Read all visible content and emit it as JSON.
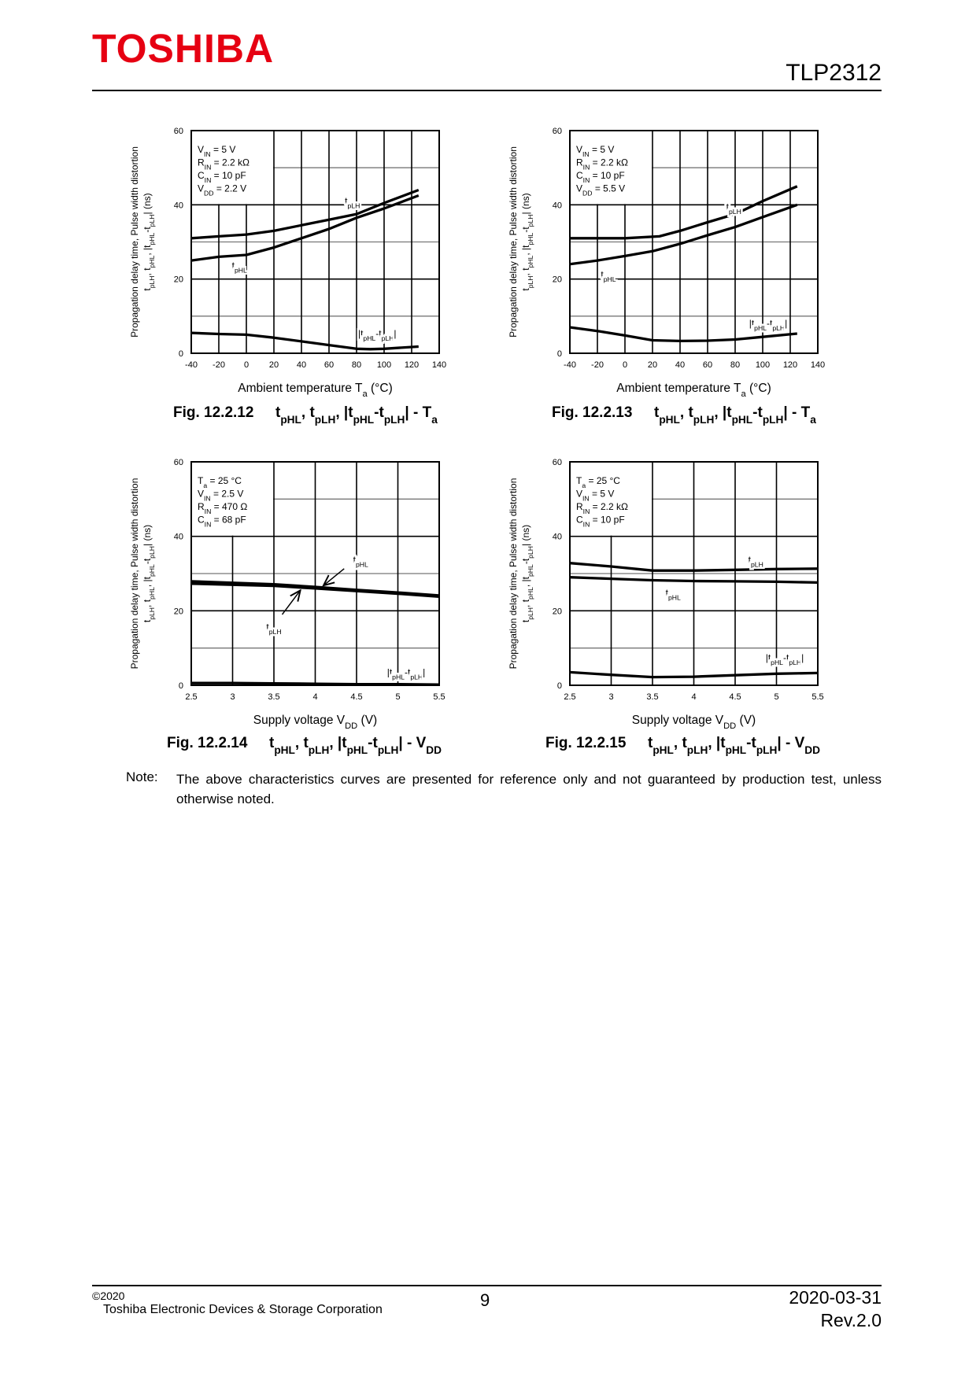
{
  "header": {
    "logo": "TOSHIBA",
    "product": "TLP2312",
    "logo_color": "#e60012"
  },
  "y_label_line1": "Propagation delay time, Pulse width distortion",
  "y_label_line2": [
    "t",
    {
      "sub": "pLH"
    },
    ", t",
    {
      "sub": "pHL"
    },
    ", |t",
    {
      "sub": "pHL"
    },
    "-t",
    {
      "sub": "pLH"
    },
    "|  (ns)"
  ],
  "charts": [
    {
      "fig": "Fig. 12.2.12",
      "formula": [
        "t",
        {
          "sub": "pHL"
        },
        ", t",
        {
          "sub": "pLH"
        },
        ", |t",
        {
          "sub": "pHL"
        },
        "-t",
        {
          "sub": "pLH"
        },
        "| - T",
        {
          "sub": "a"
        }
      ],
      "xlabel": [
        "Ambient temperature  T",
        {
          "sub": "a"
        },
        "  (°C)"
      ],
      "conditions": [
        [
          "V",
          {
            "sub": "IN"
          },
          " = 5 V"
        ],
        [
          "R",
          {
            "sub": "IN"
          },
          " = 2.2 kΩ"
        ],
        [
          "C",
          {
            "sub": "IN"
          },
          " = 10 pF"
        ],
        [
          "V",
          {
            "sub": "DD"
          },
          " = 2.2 V"
        ]
      ],
      "chart_data": {
        "type": "line",
        "xlim": [
          -40,
          140
        ],
        "ylim": [
          0,
          60
        ],
        "xticks": [
          "-40",
          "-20",
          "0",
          "20",
          "40",
          "60",
          "80",
          "100",
          "120",
          "140"
        ],
        "yticks": [
          "0",
          "20",
          "40",
          "60"
        ],
        "grid": true,
        "series": [
          {
            "name": [
              "t",
              {
                "sub": "pLH"
              }
            ],
            "x": [
              -40,
              -20,
              0,
              20,
              40,
              60,
              80,
              100,
              125
            ],
            "y": [
              31,
              31.5,
              32,
              33,
              34.5,
              36,
              37.5,
              40.5,
              44
            ]
          },
          {
            "name": [
              "t",
              {
                "sub": "pHL"
              }
            ],
            "x": [
              -40,
              -20,
              0,
              20,
              40,
              60,
              80,
              100,
              125
            ],
            "y": [
              25,
              26,
              26.5,
              28.5,
              31,
              33.5,
              36.5,
              39,
              42.5
            ]
          },
          {
            "name": [
              "|t",
              {
                "sub": "pHL"
              },
              "-t",
              {
                "sub": "pLH"
              },
              "|"
            ],
            "x": [
              -40,
              -20,
              0,
              20,
              40,
              60,
              80,
              90,
              100,
              125
            ],
            "y": [
              5.5,
              5.2,
              5,
              4.2,
              3.2,
              2.2,
              1.2,
              1.1,
              1.2,
              1.8
            ]
          }
        ]
      }
    },
    {
      "fig": "Fig. 12.2.13",
      "formula": [
        "t",
        {
          "sub": "pHL"
        },
        ", t",
        {
          "sub": "pLH"
        },
        ", |t",
        {
          "sub": "pHL"
        },
        "-t",
        {
          "sub": "pLH"
        },
        "| - T",
        {
          "sub": "a"
        }
      ],
      "xlabel": [
        "Ambient temperature  T",
        {
          "sub": "a"
        },
        "  (°C)"
      ],
      "conditions": [
        [
          "V",
          {
            "sub": "IN"
          },
          " = 5 V"
        ],
        [
          "R",
          {
            "sub": "IN"
          },
          " = 2.2 kΩ"
        ],
        [
          "C",
          {
            "sub": "IN"
          },
          " = 10 pF"
        ],
        [
          "V",
          {
            "sub": "DD"
          },
          " = 5.5 V"
        ]
      ],
      "chart_data": {
        "type": "line",
        "xlim": [
          -40,
          140
        ],
        "ylim": [
          0,
          60
        ],
        "xticks": [
          "-40",
          "-20",
          "0",
          "20",
          "40",
          "60",
          "80",
          "100",
          "120",
          "140"
        ],
        "yticks": [
          "0",
          "20",
          "40",
          "60"
        ],
        "grid": true,
        "series": [
          {
            "name": [
              "t",
              {
                "sub": "pLH"
              }
            ],
            "x": [
              -40,
              0,
              25,
              40,
              60,
              80,
              100,
              125
            ],
            "y": [
              31,
              31,
              31.5,
              33,
              35.3,
              37.5,
              41,
              45
            ]
          },
          {
            "name": [
              "t",
              {
                "sub": "pHL"
              }
            ],
            "x": [
              -40,
              -20,
              0,
              20,
              40,
              60,
              80,
              100,
              125
            ],
            "y": [
              24,
              25,
              26.2,
              27.5,
              29.5,
              31.8,
              34,
              36.7,
              40
            ]
          },
          {
            "name": [
              "|t",
              {
                "sub": "pHL"
              },
              "-t",
              {
                "sub": "pLH"
              },
              "|"
            ],
            "x": [
              -40,
              -20,
              0,
              20,
              40,
              60,
              80,
              100,
              125
            ],
            "y": [
              7,
              6,
              4.8,
              3.5,
              3.3,
              3.4,
              3.7,
              4.4,
              5.3
            ]
          }
        ]
      }
    },
    {
      "fig": "Fig. 12.2.14",
      "formula": [
        "t",
        {
          "sub": "pHL"
        },
        ", t",
        {
          "sub": "pLH"
        },
        ", |t",
        {
          "sub": "pHL"
        },
        "-t",
        {
          "sub": "pLH"
        },
        "| - V",
        {
          "sub": "DD"
        }
      ],
      "xlabel": [
        "Supply voltage  V",
        {
          "sub": "DD"
        },
        "  (V)"
      ],
      "conditions": [
        [
          "T",
          {
            "sub": "a"
          },
          " = 25 °C"
        ],
        [
          "V",
          {
            "sub": "IN"
          },
          " = 2.5 V"
        ],
        [
          "R",
          {
            "sub": "IN"
          },
          " = 470 Ω"
        ],
        [
          "C",
          {
            "sub": "IN"
          },
          " = 68 pF"
        ]
      ],
      "chart_data": {
        "type": "line",
        "xlim": [
          2.5,
          5.5
        ],
        "ylim": [
          0,
          60
        ],
        "xticks": [
          "2.5",
          "3",
          "3.5",
          "4",
          "4.5",
          "5",
          "5.5"
        ],
        "yticks": [
          "0",
          "20",
          "40",
          "60"
        ],
        "grid": true,
        "series": [
          {
            "name": [
              "t",
              {
                "sub": "pHL"
              }
            ],
            "x": [
              2.5,
              3,
              3.5,
              4,
              4.5,
              5,
              5.5
            ],
            "y": [
              27.9,
              27.5,
              27.1,
              26.4,
              25.6,
              24.9,
              24.1
            ]
          },
          {
            "name": [
              "t",
              {
                "sub": "pLH"
              }
            ],
            "x": [
              2.5,
              3,
              3.5,
              4,
              4.5,
              5,
              5.5
            ],
            "y": [
              27.3,
              27,
              26.7,
              26,
              25.3,
              24.6,
              23.8
            ]
          },
          {
            "name": [
              "|t",
              {
                "sub": "pHL"
              },
              "-t",
              {
                "sub": "pLH"
              },
              "|"
            ],
            "x": [
              2.5,
              3,
              3.5,
              4,
              4.5,
              5,
              5.5
            ],
            "y": [
              0.6,
              0.6,
              0.5,
              0.4,
              0.3,
              0.3,
              0.2
            ]
          }
        ]
      }
    },
    {
      "fig": "Fig. 12.2.15",
      "formula": [
        "t",
        {
          "sub": "pHL"
        },
        ", t",
        {
          "sub": "pLH"
        },
        ", |t",
        {
          "sub": "pHL"
        },
        "-t",
        {
          "sub": "pLH"
        },
        "| - V",
        {
          "sub": "DD"
        }
      ],
      "xlabel": [
        "Supply voltage  V",
        {
          "sub": "DD"
        },
        "  (V)"
      ],
      "conditions": [
        [
          "T",
          {
            "sub": "a"
          },
          " = 25 °C"
        ],
        [
          "V",
          {
            "sub": "IN"
          },
          " = 5 V"
        ],
        [
          "R",
          {
            "sub": "IN"
          },
          " = 2.2 kΩ"
        ],
        [
          "C",
          {
            "sub": "IN"
          },
          " = 10 pF"
        ]
      ],
      "chart_data": {
        "type": "line",
        "xlim": [
          2.5,
          5.5
        ],
        "ylim": [
          0,
          60
        ],
        "xticks": [
          "2.5",
          "3",
          "3.5",
          "4",
          "4.5",
          "5",
          "5.5"
        ],
        "yticks": [
          "0",
          "20",
          "40",
          "60"
        ],
        "grid": true,
        "series": [
          {
            "name": [
              "t",
              {
                "sub": "pLH"
              }
            ],
            "x": [
              2.5,
              3,
              3.5,
              4,
              4.5,
              5,
              5.5
            ],
            "y": [
              32.8,
              31.9,
              30.8,
              30.8,
              31,
              31.2,
              31.3
            ]
          },
          {
            "name": [
              "t",
              {
                "sub": "pHL"
              }
            ],
            "x": [
              2.5,
              3,
              3.5,
              4,
              4.5,
              5,
              5.5
            ],
            "y": [
              29,
              28.6,
              28.2,
              28,
              27.9,
              27.8,
              27.6
            ]
          },
          {
            "name": [
              "|t",
              {
                "sub": "pHL"
              },
              "-t",
              {
                "sub": "pLH"
              },
              "|"
            ],
            "x": [
              2.5,
              3,
              3.5,
              4,
              4.5,
              5,
              5.5
            ],
            "y": [
              3.5,
              2.8,
              2.2,
              2.3,
              2.7,
              3.1,
              3.3
            ]
          }
        ]
      }
    }
  ],
  "note": {
    "label": "Note:",
    "text": "The above characteristics curves are presented for reference only and not guaranteed by production test, unless otherwise noted."
  },
  "footer": {
    "copyright": "©2020",
    "company": "Toshiba Electronic Devices & Storage Corporation",
    "page": "9",
    "date": "2020-03-31",
    "revision": "Rev.2.0"
  }
}
